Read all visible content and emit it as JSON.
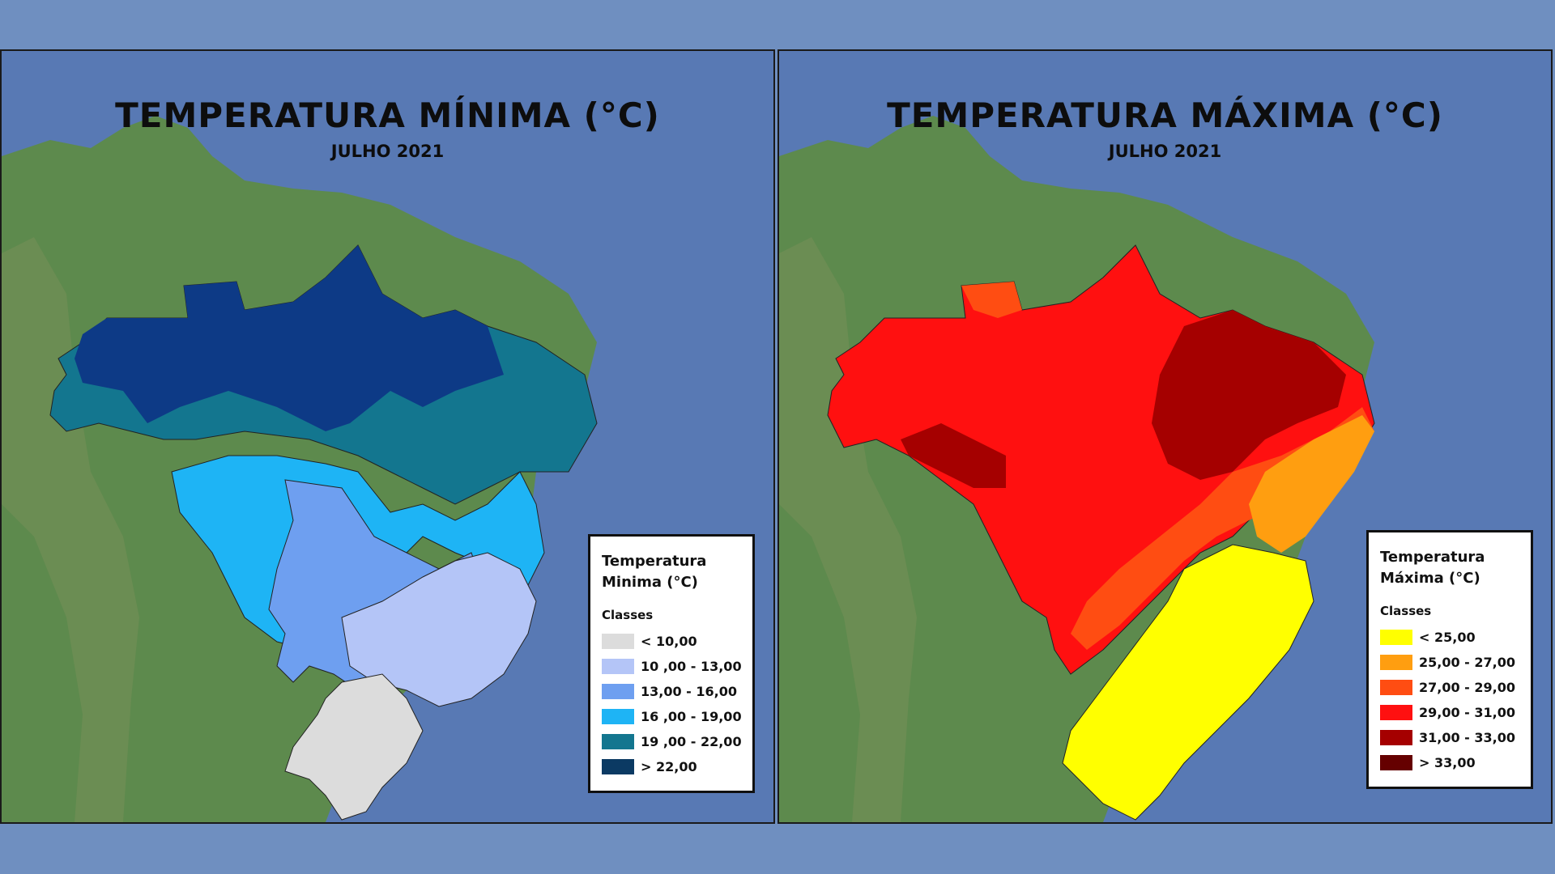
{
  "panels": [
    {
      "title": "TEMPERATURA MÍNIMA (°C)",
      "subtitle": "JULHO 2021",
      "legend": {
        "title_line1": "Temperatura",
        "title_line2": "Minima (°C)",
        "classes_label": "Classes",
        "items": [
          {
            "label": "< 10,00",
            "color": "#dcdcdc"
          },
          {
            "label": "10 ,00 - 13,00",
            "color": "#b4c5f7"
          },
          {
            "label": "13,00 - 16,00",
            "color": "#6e9ff0"
          },
          {
            "label": "16 ,00 - 19,00",
            "color": "#1eb4f5"
          },
          {
            "label": "19 ,00 - 22,00",
            "color": "#13768f"
          },
          {
            "label": "> 22,00",
            "color": "#0b3a63"
          }
        ]
      }
    },
    {
      "title": "TEMPERATURA MÁXIMA (°C)",
      "subtitle": "JULHO 2021",
      "legend": {
        "title_line1": "Temperatura",
        "title_line2": "Máxima (°C)",
        "classes_label": "Classes",
        "items": [
          {
            "label": "< 25,00",
            "color": "#ffff00"
          },
          {
            "label": "25,00 - 27,00",
            "color": "#ff9e10"
          },
          {
            "label": "27,00 - 29,00",
            "color": "#ff4d12"
          },
          {
            "label": "29,00 - 31,00",
            "color": "#ff1010"
          },
          {
            "label": "31,00 - 33,00",
            "color": "#a50000"
          },
          {
            "label": "> 33,00",
            "color": "#650000"
          }
        ]
      }
    }
  ],
  "colors": {
    "ocean": "#5879b4",
    "land": "#5f8c4f",
    "background": "#6f8fc0"
  }
}
